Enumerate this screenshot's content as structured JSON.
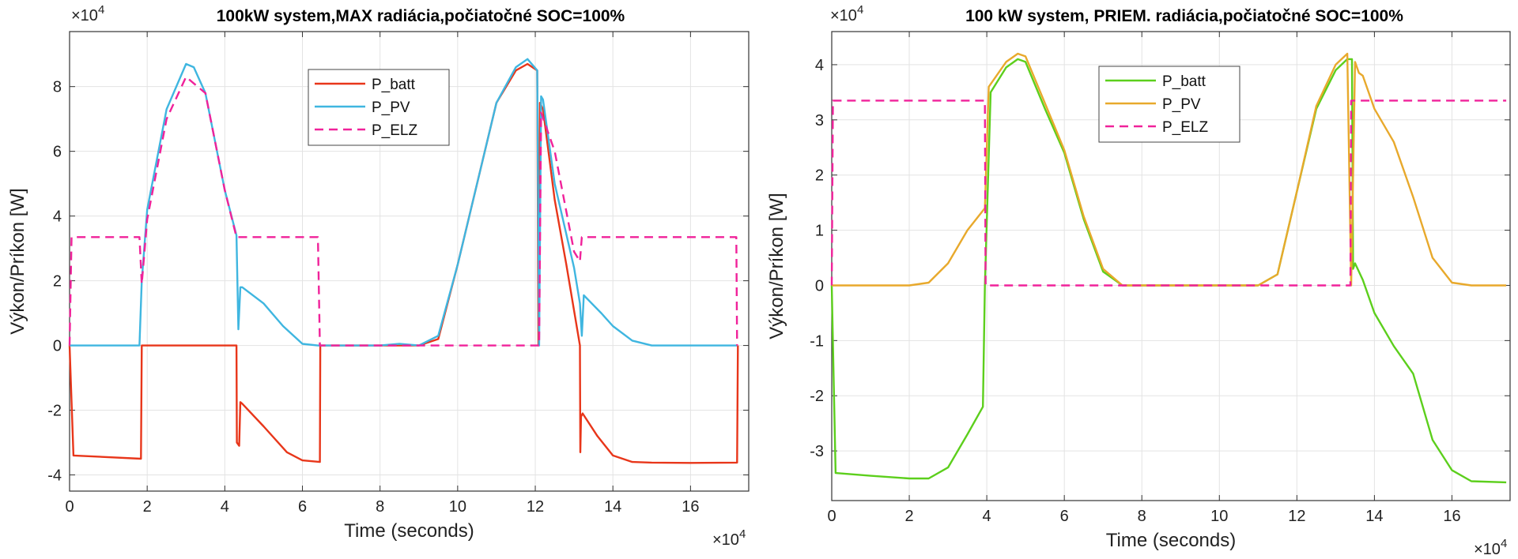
{
  "chart_data": [
    {
      "type": "line",
      "title": "100kW system,MAX radiácia,počiatočné SOC=100%",
      "xlabel": "Time (seconds)",
      "ylabel": "Výkon/Príkon [W]",
      "x_exponent": "×10",
      "x_exponent_power": "4",
      "y_exponent": "×10",
      "y_exponent_power": "4",
      "xlim": [
        0,
        17.5
      ],
      "ylim": [
        -4.5,
        9.7
      ],
      "xticks": [
        0,
        2,
        4,
        6,
        8,
        10,
        12,
        14,
        16
      ],
      "yticks": [
        -4,
        -2,
        0,
        2,
        4,
        6,
        8
      ],
      "grid": true,
      "legend_position": "top-center",
      "series": [
        {
          "name": "P_batt",
          "color": "#e8361a",
          "dash": "solid",
          "x": [
            0,
            0.1,
            1.84,
            1.86,
            4.3,
            4.31,
            4.37,
            4.4,
            4.45,
            5.0,
            5.6,
            6.0,
            6.45,
            6.46,
            8.0,
            9.0,
            9.5,
            10.0,
            10.5,
            11.0,
            11.5,
            11.8,
            12.05,
            12.08,
            12.12,
            12.2,
            12.5,
            12.8,
            13.15,
            13.16,
            13.18,
            13.22,
            13.6,
            14.0,
            14.5,
            15.0,
            16.0,
            17.2,
            17.22
          ],
          "y": [
            0,
            -3.4,
            -3.5,
            0,
            0,
            -3.0,
            -3.1,
            -1.75,
            -1.8,
            -2.5,
            -3.3,
            -3.55,
            -3.6,
            0,
            0,
            0,
            0.2,
            2.5,
            5.0,
            7.5,
            8.5,
            8.7,
            8.5,
            0,
            7.5,
            7.3,
            4.5,
            2.5,
            0,
            -3.3,
            -2.2,
            -2.1,
            -2.8,
            -3.4,
            -3.6,
            -3.62,
            -3.63,
            -3.62,
            0
          ]
        },
        {
          "name": "P_PV",
          "color": "#3fb6e0",
          "dash": "solid",
          "x": [
            0,
            1.8,
            1.86,
            2.0,
            2.5,
            3.0,
            3.2,
            3.5,
            4.0,
            4.3,
            4.35,
            4.4,
            4.45,
            5.0,
            5.5,
            6.0,
            6.4,
            7.0,
            8.0,
            8.5,
            9.0,
            9.5,
            10.0,
            10.5,
            11.0,
            11.5,
            11.8,
            12.05,
            12.1,
            12.15,
            12.2,
            12.5,
            13.0,
            13.15,
            13.2,
            13.25,
            13.7,
            14.0,
            14.5,
            15.0,
            16.0,
            17.2
          ],
          "y": [
            0,
            0,
            2.0,
            4.2,
            7.3,
            8.7,
            8.6,
            7.8,
            4.8,
            3.4,
            0.5,
            1.8,
            1.8,
            1.3,
            0.6,
            0.05,
            0,
            0,
            0,
            0.05,
            0,
            0.3,
            2.5,
            5.0,
            7.5,
            8.6,
            8.85,
            8.5,
            0,
            7.7,
            7.6,
            5.0,
            2.4,
            1.3,
            0.3,
            1.55,
            1.0,
            0.6,
            0.15,
            0,
            0,
            0
          ]
        },
        {
          "name": "P_ELZ",
          "color": "#f0229a",
          "dash": "dashed",
          "x": [
            0,
            0.05,
            1.8,
            1.86,
            2.0,
            2.5,
            3.0,
            3.5,
            4.0,
            4.3,
            4.35,
            6.4,
            6.45,
            12.05,
            12.1,
            12.15,
            12.5,
            13.0,
            13.15,
            13.2,
            17.18,
            17.2
          ],
          "y": [
            0,
            3.35,
            3.35,
            1.9,
            3.9,
            7.0,
            8.3,
            7.8,
            4.8,
            3.35,
            3.35,
            3.35,
            0,
            0,
            0,
            7.2,
            6.0,
            2.9,
            2.6,
            3.35,
            3.35,
            0
          ]
        }
      ]
    },
    {
      "type": "line",
      "title": "100 kW system, PRIEM. radiácia,počiatočné SOC=100%",
      "xlabel": "Time (seconds)",
      "ylabel": "Výkon/Príkon [W]",
      "x_exponent": "×10",
      "x_exponent_power": "4",
      "y_exponent": "×10",
      "y_exponent_power": "4",
      "xlim": [
        0,
        17.5
      ],
      "ylim": [
        -3.9,
        4.6
      ],
      "xticks": [
        0,
        2,
        4,
        6,
        8,
        10,
        12,
        14,
        16
      ],
      "yticks": [
        -3,
        -2,
        -1,
        0,
        1,
        2,
        3,
        4
      ],
      "grid": true,
      "legend_position": "top-left",
      "series": [
        {
          "name": "P_batt",
          "color": "#5ccf1c",
          "dash": "solid",
          "x": [
            0,
            0.1,
            1.0,
            2.0,
            2.5,
            3.0,
            3.5,
            3.9,
            3.95,
            4.1,
            4.5,
            4.8,
            5.0,
            5.5,
            6.0,
            6.5,
            7.0,
            7.5,
            8.0,
            11.0,
            11.5,
            12.0,
            12.5,
            13.0,
            13.3,
            13.42,
            13.45,
            13.5,
            13.7,
            14.0,
            14.5,
            15.0,
            15.5,
            16.0,
            16.5,
            17.4
          ],
          "y": [
            0,
            -3.4,
            -3.45,
            -3.5,
            -3.5,
            -3.3,
            -2.7,
            -2.2,
            0,
            3.5,
            3.95,
            4.1,
            4.05,
            3.2,
            2.4,
            1.2,
            0.25,
            0,
            0,
            0,
            0.2,
            1.7,
            3.2,
            3.9,
            4.1,
            4.1,
            0.3,
            0.4,
            0.1,
            -0.5,
            -1.1,
            -1.6,
            -2.8,
            -3.35,
            -3.55,
            -3.57
          ]
        },
        {
          "name": "P_PV",
          "color": "#e8a92c",
          "dash": "solid",
          "x": [
            0,
            2.0,
            2.5,
            3.0,
            3.5,
            3.95,
            4.05,
            4.5,
            4.8,
            5.0,
            5.5,
            6.0,
            6.5,
            7.0,
            7.5,
            8.0,
            11.0,
            11.5,
            12.0,
            12.5,
            13.0,
            13.3,
            13.4,
            13.5,
            13.6,
            13.7,
            14.0,
            14.5,
            15.0,
            15.5,
            16.0,
            16.5,
            17.4
          ],
          "y": [
            0,
            0,
            0.05,
            0.4,
            1.0,
            1.4,
            3.6,
            4.05,
            4.2,
            4.15,
            3.3,
            2.45,
            1.25,
            0.3,
            0,
            0,
            0,
            0.2,
            1.7,
            3.25,
            4.0,
            4.2,
            0.0,
            4.05,
            3.85,
            3.8,
            3.2,
            2.6,
            1.6,
            0.5,
            0.05,
            0,
            0
          ]
        },
        {
          "name": "P_ELZ",
          "color": "#f0229a",
          "dash": "dashed",
          "x": [
            0,
            0.03,
            3.95,
            3.97,
            13.38,
            13.4,
            17.4
          ],
          "y": [
            0,
            3.35,
            3.35,
            0,
            0,
            3.35,
            3.35
          ]
        }
      ]
    }
  ]
}
